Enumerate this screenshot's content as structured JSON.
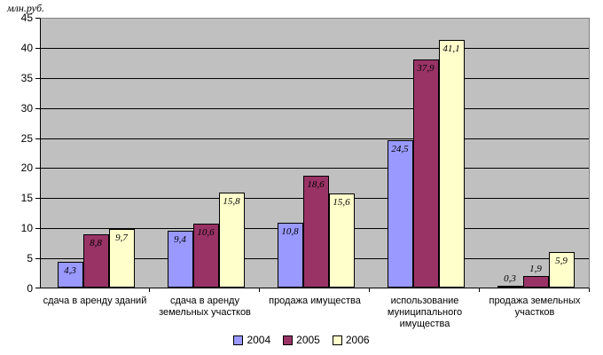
{
  "chart_data": {
    "type": "bar",
    "title": "",
    "ylabel": "млн.руб.",
    "xlabel": "",
    "ylim": [
      0,
      45
    ],
    "ytick_step": 5,
    "yticks": [
      0,
      5,
      10,
      15,
      20,
      25,
      30,
      35,
      40,
      45
    ],
    "grid": true,
    "plot_background": "#C0C0C0",
    "gridline_color": "#000000",
    "legend_position": "bottom",
    "decimal_separator": ",",
    "categories": [
      "сдача в аренду зданий",
      "сдача в аренду земельных участков",
      "продажа имущества",
      "использование муниципального имущества",
      "продажа земельных участков"
    ],
    "series": [
      {
        "name": "2004",
        "color": "#9999FF",
        "values": [
          4.3,
          9.4,
          10.8,
          24.5,
          0.3
        ],
        "labels": [
          "4,3",
          "9,4",
          "10,8",
          "24,5",
          "0,3"
        ]
      },
      {
        "name": "2005",
        "color": "#993366",
        "values": [
          8.8,
          10.6,
          18.6,
          37.9,
          1.9
        ],
        "labels": [
          "8,8",
          "10,6",
          "18,6",
          "37,9",
          "1,9"
        ]
      },
      {
        "name": "2006",
        "color": "#FFFFCC",
        "values": [
          9.7,
          15.8,
          15.6,
          41.1,
          5.9
        ],
        "labels": [
          "9,7",
          "15,8",
          "15,6",
          "41,1",
          "5,9"
        ]
      }
    ]
  }
}
